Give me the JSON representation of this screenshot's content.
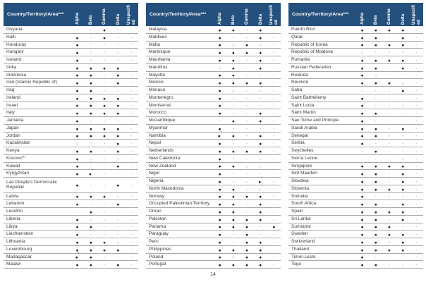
{
  "page": {
    "number": "14"
  },
  "columns": {
    "name_header": "Country/Territory/Area***",
    "variants": [
      "Alpha",
      "Beta",
      "Gamma",
      "Delta",
      "Unspecified"
    ]
  },
  "symbols": {
    "detected": "●",
    "suspected": "○",
    "none": "-"
  },
  "colors": {
    "header_bg": "#24507e",
    "header_text": "#ffffff",
    "row_line": "#a9a9a9"
  },
  "tables": [
    {
      "rows": [
        {
          "name": "Guyana",
          "cells": [
            "-",
            "-",
            "●",
            "-",
            "-"
          ]
        },
        {
          "name": "Haiti",
          "cells": [
            "●",
            "-",
            "●",
            "-",
            "-"
          ]
        },
        {
          "name": "Honduras",
          "cells": [
            "●",
            "-",
            "-",
            "-",
            "-"
          ]
        },
        {
          "name": "Hungary",
          "cells": [
            "●",
            "○",
            "-",
            "○",
            "-"
          ]
        },
        {
          "name": "Iceland",
          "cells": [
            "●",
            "-",
            "-",
            "-",
            "-"
          ]
        },
        {
          "name": "India",
          "cells": [
            "●",
            "●",
            "●",
            "●",
            "-"
          ]
        },
        {
          "name": "Indonesia",
          "cells": [
            "●",
            "●",
            "-",
            "●",
            "-"
          ]
        },
        {
          "name": "Iran (Islamic Republic of)",
          "cells": [
            "●",
            "●",
            "-",
            "●",
            "-"
          ]
        },
        {
          "name": "Iraq",
          "cells": [
            "●",
            "●",
            "-",
            "-",
            "-"
          ]
        },
        {
          "name": "Ireland",
          "cells": [
            "●",
            "●",
            "●",
            "●",
            "-"
          ]
        },
        {
          "name": "Israel",
          "cells": [
            "●",
            "●",
            "●",
            "●",
            "-"
          ]
        },
        {
          "name": "Italy",
          "cells": [
            "●",
            "●",
            "●",
            "●",
            "-"
          ]
        },
        {
          "name": "Jamaica",
          "cells": [
            "●",
            "-",
            "-",
            "-",
            "-"
          ]
        },
        {
          "name": "Japan",
          "cells": [
            "●",
            "●",
            "●",
            "●",
            "-"
          ]
        },
        {
          "name": "Jordan",
          "cells": [
            "●",
            "●",
            "●",
            "●",
            "-"
          ]
        },
        {
          "name": "Kazakhstan",
          "cells": [
            "○",
            "○",
            "-",
            "●",
            "-"
          ]
        },
        {
          "name": "Kenya",
          "cells": [
            "●",
            "●",
            "-",
            "●",
            "-"
          ]
        },
        {
          "name": "Kosovo",
          "sup": "[1]",
          "cells": [
            "●",
            "○",
            "-",
            "○",
            "-"
          ]
        },
        {
          "name": "Kuwait",
          "cells": [
            "●",
            "-",
            "-",
            "●",
            "-"
          ]
        },
        {
          "name": "Kyrgyzstan",
          "cells": [
            "●",
            "●*",
            "-",
            "-",
            "-"
          ]
        },
        {
          "name": "Lao People's Democratic Republic",
          "wrap": true,
          "cells": [
            "●",
            "-",
            "-",
            "●",
            "-"
          ]
        },
        {
          "name": "Latvia",
          "cells": [
            "●",
            "●",
            "●",
            "○",
            "-"
          ]
        },
        {
          "name": "Lebanon",
          "cells": [
            "●",
            "-",
            "-",
            "●",
            "-"
          ]
        },
        {
          "name": "Lesotho",
          "cells": [
            "-",
            "●",
            "-",
            "-",
            "-"
          ]
        },
        {
          "name": "Liberia",
          "cells": [
            "●",
            "-",
            "-",
            "-",
            "-"
          ]
        },
        {
          "name": "Libya",
          "cells": [
            "●",
            "●",
            "-",
            "-",
            "-"
          ]
        },
        {
          "name": "Liechtenstein",
          "cells": [
            "●",
            "-",
            "-",
            "-",
            "-"
          ]
        },
        {
          "name": "Lithuania",
          "cells": [
            "●",
            "●",
            "●",
            "○",
            "-"
          ]
        },
        {
          "name": "Luxembourg",
          "cells": [
            "●",
            "●",
            "●",
            "●",
            "-"
          ]
        },
        {
          "name": "Madagascar",
          "cells": [
            "●*",
            "●",
            "-",
            "-",
            "-"
          ]
        },
        {
          "name": "Malawi",
          "cells": [
            "●",
            "●",
            "-",
            "●",
            "-"
          ]
        }
      ]
    },
    {
      "rows": [
        {
          "name": "Malaysia",
          "cells": [
            "●",
            "●",
            "-",
            "●",
            "-"
          ]
        },
        {
          "name": "Maldives",
          "cells": [
            "●",
            "-",
            "-",
            "●",
            "-"
          ]
        },
        {
          "name": "Malta",
          "cells": [
            "●",
            "○",
            "●",
            "○",
            "-"
          ]
        },
        {
          "name": "Martinique",
          "cells": [
            "●",
            "●",
            "●",
            "●",
            "-"
          ]
        },
        {
          "name": "Mauritania",
          "cells": [
            "●",
            "●",
            "-",
            "●",
            "-"
          ]
        },
        {
          "name": "Mauritius",
          "cells": [
            "○",
            "●",
            "-",
            "●",
            "-"
          ]
        },
        {
          "name": "Mayotte",
          "cells": [
            "●",
            "●",
            "-",
            "-",
            "-"
          ]
        },
        {
          "name": "Mexico",
          "cells": [
            "●",
            "●",
            "●",
            "●",
            "-"
          ]
        },
        {
          "name": "Monaco",
          "cells": [
            "●",
            "○",
            "-",
            "○*",
            "-"
          ]
        },
        {
          "name": "Montenegro",
          "cells": [
            "●",
            "-",
            "-",
            "-",
            "-"
          ]
        },
        {
          "name": "Montserrat",
          "cells": [
            "●",
            "-",
            "-",
            "-",
            "-"
          ]
        },
        {
          "name": "Morocco",
          "cells": [
            "●",
            "-",
            "-",
            "●",
            "-"
          ]
        },
        {
          "name": "Mozambique",
          "cells": [
            "-",
            "●",
            "-",
            "●",
            "-"
          ]
        },
        {
          "name": "Myanmar",
          "cells": [
            "●",
            "-",
            "-",
            "-",
            "-"
          ]
        },
        {
          "name": "Namibia",
          "cells": [
            "●*",
            "●",
            "-",
            "●",
            "-"
          ]
        },
        {
          "name": "Nepal",
          "cells": [
            "●",
            "-",
            "-",
            "●",
            "-"
          ]
        },
        {
          "name": "Netherlands",
          "cells": [
            "●",
            "●",
            "●",
            "●",
            "-"
          ]
        },
        {
          "name": "New Caledonia",
          "cells": [
            "●",
            "-",
            "-",
            "-",
            "-"
          ]
        },
        {
          "name": "New Zealand",
          "cells": [
            "●",
            "●",
            "○",
            "○",
            "-"
          ]
        },
        {
          "name": "Niger",
          "cells": [
            "●",
            "-",
            "-",
            "-",
            "-"
          ]
        },
        {
          "name": "Nigeria",
          "cells": [
            "●",
            "-",
            "-",
            "●*",
            "-"
          ]
        },
        {
          "name": "North Macedonia",
          "cells": [
            "●",
            "●",
            "-",
            "○*",
            "-"
          ]
        },
        {
          "name": "Norway",
          "cells": [
            "●",
            "●",
            "●",
            "●",
            "-"
          ]
        },
        {
          "name": "Occupied Palestinian Territory",
          "cells": [
            "●",
            "●",
            "-",
            "●",
            "-"
          ]
        },
        {
          "name": "Oman",
          "cells": [
            "●",
            "●",
            "-",
            "●",
            "-"
          ]
        },
        {
          "name": "Pakistan",
          "cells": [
            "●",
            "●",
            "●",
            "●",
            "-"
          ]
        },
        {
          "name": "Panama",
          "cells": [
            "●",
            "●",
            "●",
            "-",
            "●"
          ]
        },
        {
          "name": "Paraguay",
          "cells": [
            "●",
            "-",
            "●",
            "-",
            "-"
          ]
        },
        {
          "name": "Peru",
          "cells": [
            "●",
            "-",
            "●",
            "●",
            "-"
          ]
        },
        {
          "name": "Philippines",
          "cells": [
            "●",
            "●",
            "●",
            "●",
            "-"
          ]
        },
        {
          "name": "Poland",
          "cells": [
            "●",
            "○",
            "●",
            "●",
            "-"
          ]
        },
        {
          "name": "Portugal",
          "cells": [
            "●",
            "●",
            "●",
            "●",
            "-"
          ]
        }
      ]
    },
    {
      "rows": [
        {
          "name": "Puerto Rico",
          "cells": [
            "●",
            "●",
            "●",
            "●",
            "-"
          ]
        },
        {
          "name": "Qatar",
          "cells": [
            "●",
            "●",
            "-",
            "●",
            "-"
          ]
        },
        {
          "name": "Republic of Korea",
          "cells": [
            "●",
            "●",
            "●",
            "●",
            "-"
          ]
        },
        {
          "name": "Republic of Moldova",
          "cells": [
            "○",
            "-",
            "-",
            "-",
            "-"
          ]
        },
        {
          "name": "Romania",
          "cells": [
            "●",
            "●",
            "●",
            "●",
            "-"
          ]
        },
        {
          "name": "Russian Federation",
          "cells": [
            "●",
            "●",
            "-",
            "●",
            "-"
          ]
        },
        {
          "name": "Rwanda",
          "cells": [
            "●",
            "○",
            "-",
            "-",
            "-"
          ]
        },
        {
          "name": "Réunion",
          "cells": [
            "●",
            "●",
            "●",
            "○",
            "-"
          ]
        },
        {
          "name": "Saba",
          "cells": [
            "-",
            "-",
            "-",
            "●",
            "-"
          ]
        },
        {
          "name": "Saint Barthélemy",
          "cells": [
            "●",
            "-",
            "-",
            "-",
            "-"
          ]
        },
        {
          "name": "Saint Lucia",
          "cells": [
            "●",
            "-",
            "-",
            "-",
            "-"
          ]
        },
        {
          "name": "Saint Martin",
          "cells": [
            "●",
            "●",
            "-",
            "-",
            "-"
          ]
        },
        {
          "name": "Sao Tome and Principe",
          "cells": [
            "●",
            "-",
            "-",
            "-",
            "-"
          ]
        },
        {
          "name": "Saudi Arabia",
          "cells": [
            "●",
            "●",
            "-",
            "●",
            "-"
          ]
        },
        {
          "name": "Senegal",
          "cells": [
            "●",
            "●",
            "-",
            "-",
            "-"
          ]
        },
        {
          "name": "Serbia",
          "cells": [
            "●",
            "-",
            "-",
            "-",
            "-"
          ]
        },
        {
          "name": "Seychelles",
          "cells": [
            "-",
            "●",
            "-",
            "-",
            "-"
          ]
        },
        {
          "name": "Sierra Leone",
          "cells": [
            "-",
            "-",
            "-",
            "○",
            "-"
          ]
        },
        {
          "name": "Singapore",
          "cells": [
            "●",
            "●",
            "●",
            "●",
            "-"
          ]
        },
        {
          "name": "Sint Maarten",
          "cells": [
            "●",
            "●",
            "-",
            "●",
            "-"
          ]
        },
        {
          "name": "Slovakia",
          "cells": [
            "●",
            "●",
            "-",
            "●",
            "-"
          ]
        },
        {
          "name": "Slovenia",
          "cells": [
            "●",
            "●",
            "●",
            "●",
            "-"
          ]
        },
        {
          "name": "Somalia",
          "cells": [
            "●",
            "-",
            "-",
            "-",
            "-"
          ]
        },
        {
          "name": "South Africa",
          "cells": [
            "●",
            "●",
            "-",
            "●",
            "-"
          ]
        },
        {
          "name": "Spain",
          "cells": [
            "●",
            "●",
            "●",
            "●",
            "-"
          ]
        },
        {
          "name": "Sri Lanka",
          "cells": [
            "●",
            "●",
            "-",
            "●",
            "-"
          ]
        },
        {
          "name": "Suriname",
          "cells": [
            "●",
            "●",
            "●",
            "-",
            "-"
          ]
        },
        {
          "name": "Sweden",
          "cells": [
            "●",
            "●",
            "●",
            "●",
            "-"
          ]
        },
        {
          "name": "Switzerland",
          "cells": [
            "●",
            "●",
            "○",
            "●",
            "-"
          ]
        },
        {
          "name": "Thailand",
          "cells": [
            "●",
            "●",
            "●",
            "●",
            "-"
          ]
        },
        {
          "name": "Timor-Leste",
          "cells": [
            "●",
            "-",
            "-",
            "-",
            "-"
          ]
        },
        {
          "name": "Togo",
          "cells": [
            "●",
            "●",
            "-",
            "-",
            "-"
          ]
        }
      ]
    }
  ]
}
